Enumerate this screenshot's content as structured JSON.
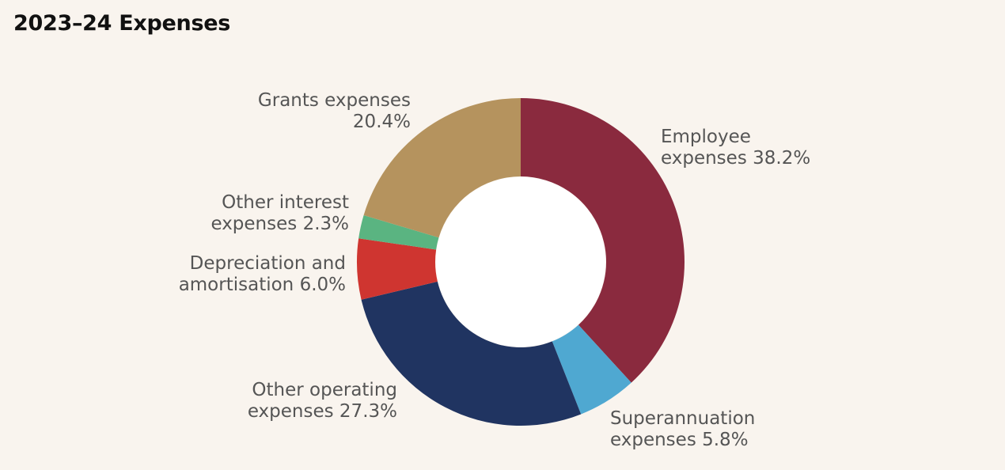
{
  "title": "2023–24 Expenses",
  "chart_data": {
    "type": "pie",
    "variant": "donut",
    "title": "2023–24 Expenses",
    "start": "12 o'clock, clockwise",
    "slices": [
      {
        "name": "Employee expenses",
        "value": 38.2,
        "color": "#8a2a3e",
        "label_lines": [
          "Employee",
          "expenses 38.2%"
        ],
        "label_align": "start"
      },
      {
        "name": "Superannuation expenses",
        "value": 5.8,
        "color": "#4fa8d1",
        "label_lines": [
          "Superannuation",
          "expenses 5.8%"
        ],
        "label_align": "start"
      },
      {
        "name": "Other operating expenses",
        "value": 27.3,
        "color": "#203461",
        "label_lines": [
          "Other operating",
          "expenses 27.3%"
        ],
        "label_align": "end"
      },
      {
        "name": "Depreciation and amortisation",
        "value": 6.0,
        "color": "#cf3530",
        "label_lines": [
          "Depreciation and",
          "amortisation 6.0%"
        ],
        "label_align": "end"
      },
      {
        "name": "Other interest expenses",
        "value": 2.3,
        "color": "#5ab481",
        "label_lines": [
          "Other interest",
          "expenses 2.3%"
        ],
        "label_align": "end"
      },
      {
        "name": "Grants expenses",
        "value": 20.4,
        "color": "#b5935e",
        "label_lines": [
          "Grants expenses",
          "20.4%"
        ],
        "label_align": "end"
      }
    ]
  }
}
